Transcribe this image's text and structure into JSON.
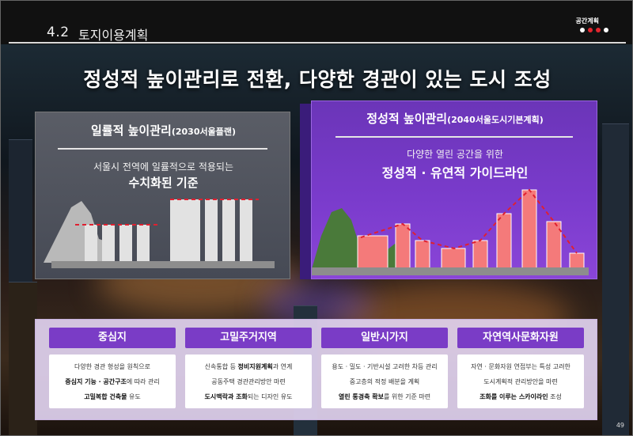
{
  "header": {
    "section_number": "4.2",
    "section_title": "토지이용계획",
    "brand": "공간계획"
  },
  "main_title": "정성적 높이관리로 전환, 다양한 경관이 있는 도시 조성",
  "left_panel": {
    "title": "일률적 높이관리",
    "title_note": "(2030서울플랜)",
    "subtitle": "서울시 전역에 일률적으로 적용되는",
    "emphasis": "수치화된 기준"
  },
  "right_panel": {
    "title": "정성적 높이관리",
    "title_note": "(2040서울도시기본계획)",
    "subtitle": "다양한 열린 공간을 위한",
    "emphasis": "정성적 · 유연적 가이드라인"
  },
  "cards": [
    {
      "title": "중심지",
      "lines": [
        {
          "pre": "다양한 경관 형성을 원칙으로",
          "bold": "",
          "post": ""
        },
        {
          "pre": "",
          "bold": "중심지 기능 · 공간구조",
          "post": "에 따라 관리"
        },
        {
          "pre": "",
          "bold": "고밀복합 건축물",
          "post": " 유도"
        }
      ]
    },
    {
      "title": "고밀주거지역",
      "lines": [
        {
          "pre": "신속통합 등 ",
          "bold": "정비지원계획",
          "post": "과 연계"
        },
        {
          "pre": "공동주택 경관관리방안 마련",
          "bold": "",
          "post": ""
        },
        {
          "pre": "",
          "bold": "도시맥락과 조화",
          "post": "되는 디자인 유도"
        }
      ]
    },
    {
      "title": "일반시가지",
      "lines": [
        {
          "pre": "용도 · 밀도 · 기반시설 고려한 차등 관리",
          "bold": "",
          "post": ""
        },
        {
          "pre": "중고층의 적정 배분을 계획",
          "bold": "",
          "post": ""
        },
        {
          "pre": "",
          "bold": "열린 통경축 확보",
          "post": "를 위한 기준 마련"
        }
      ]
    },
    {
      "title": "자연역사문화자원",
      "lines": [
        {
          "pre": "자연 · 문화자원 연접부는 특성 고려한",
          "bold": "",
          "post": ""
        },
        {
          "pre": "도시계획적 관리방안을 마련",
          "bold": "",
          "post": ""
        },
        {
          "pre": "",
          "bold": "조화를 이루는 스카이라인",
          "post": " 조성"
        }
      ]
    }
  ],
  "page_number": "49",
  "colors": {
    "purple": "#7a3cc6",
    "salmon": "#f47a7a",
    "green": "#4a7a3a",
    "red_dash": "#e02030"
  }
}
